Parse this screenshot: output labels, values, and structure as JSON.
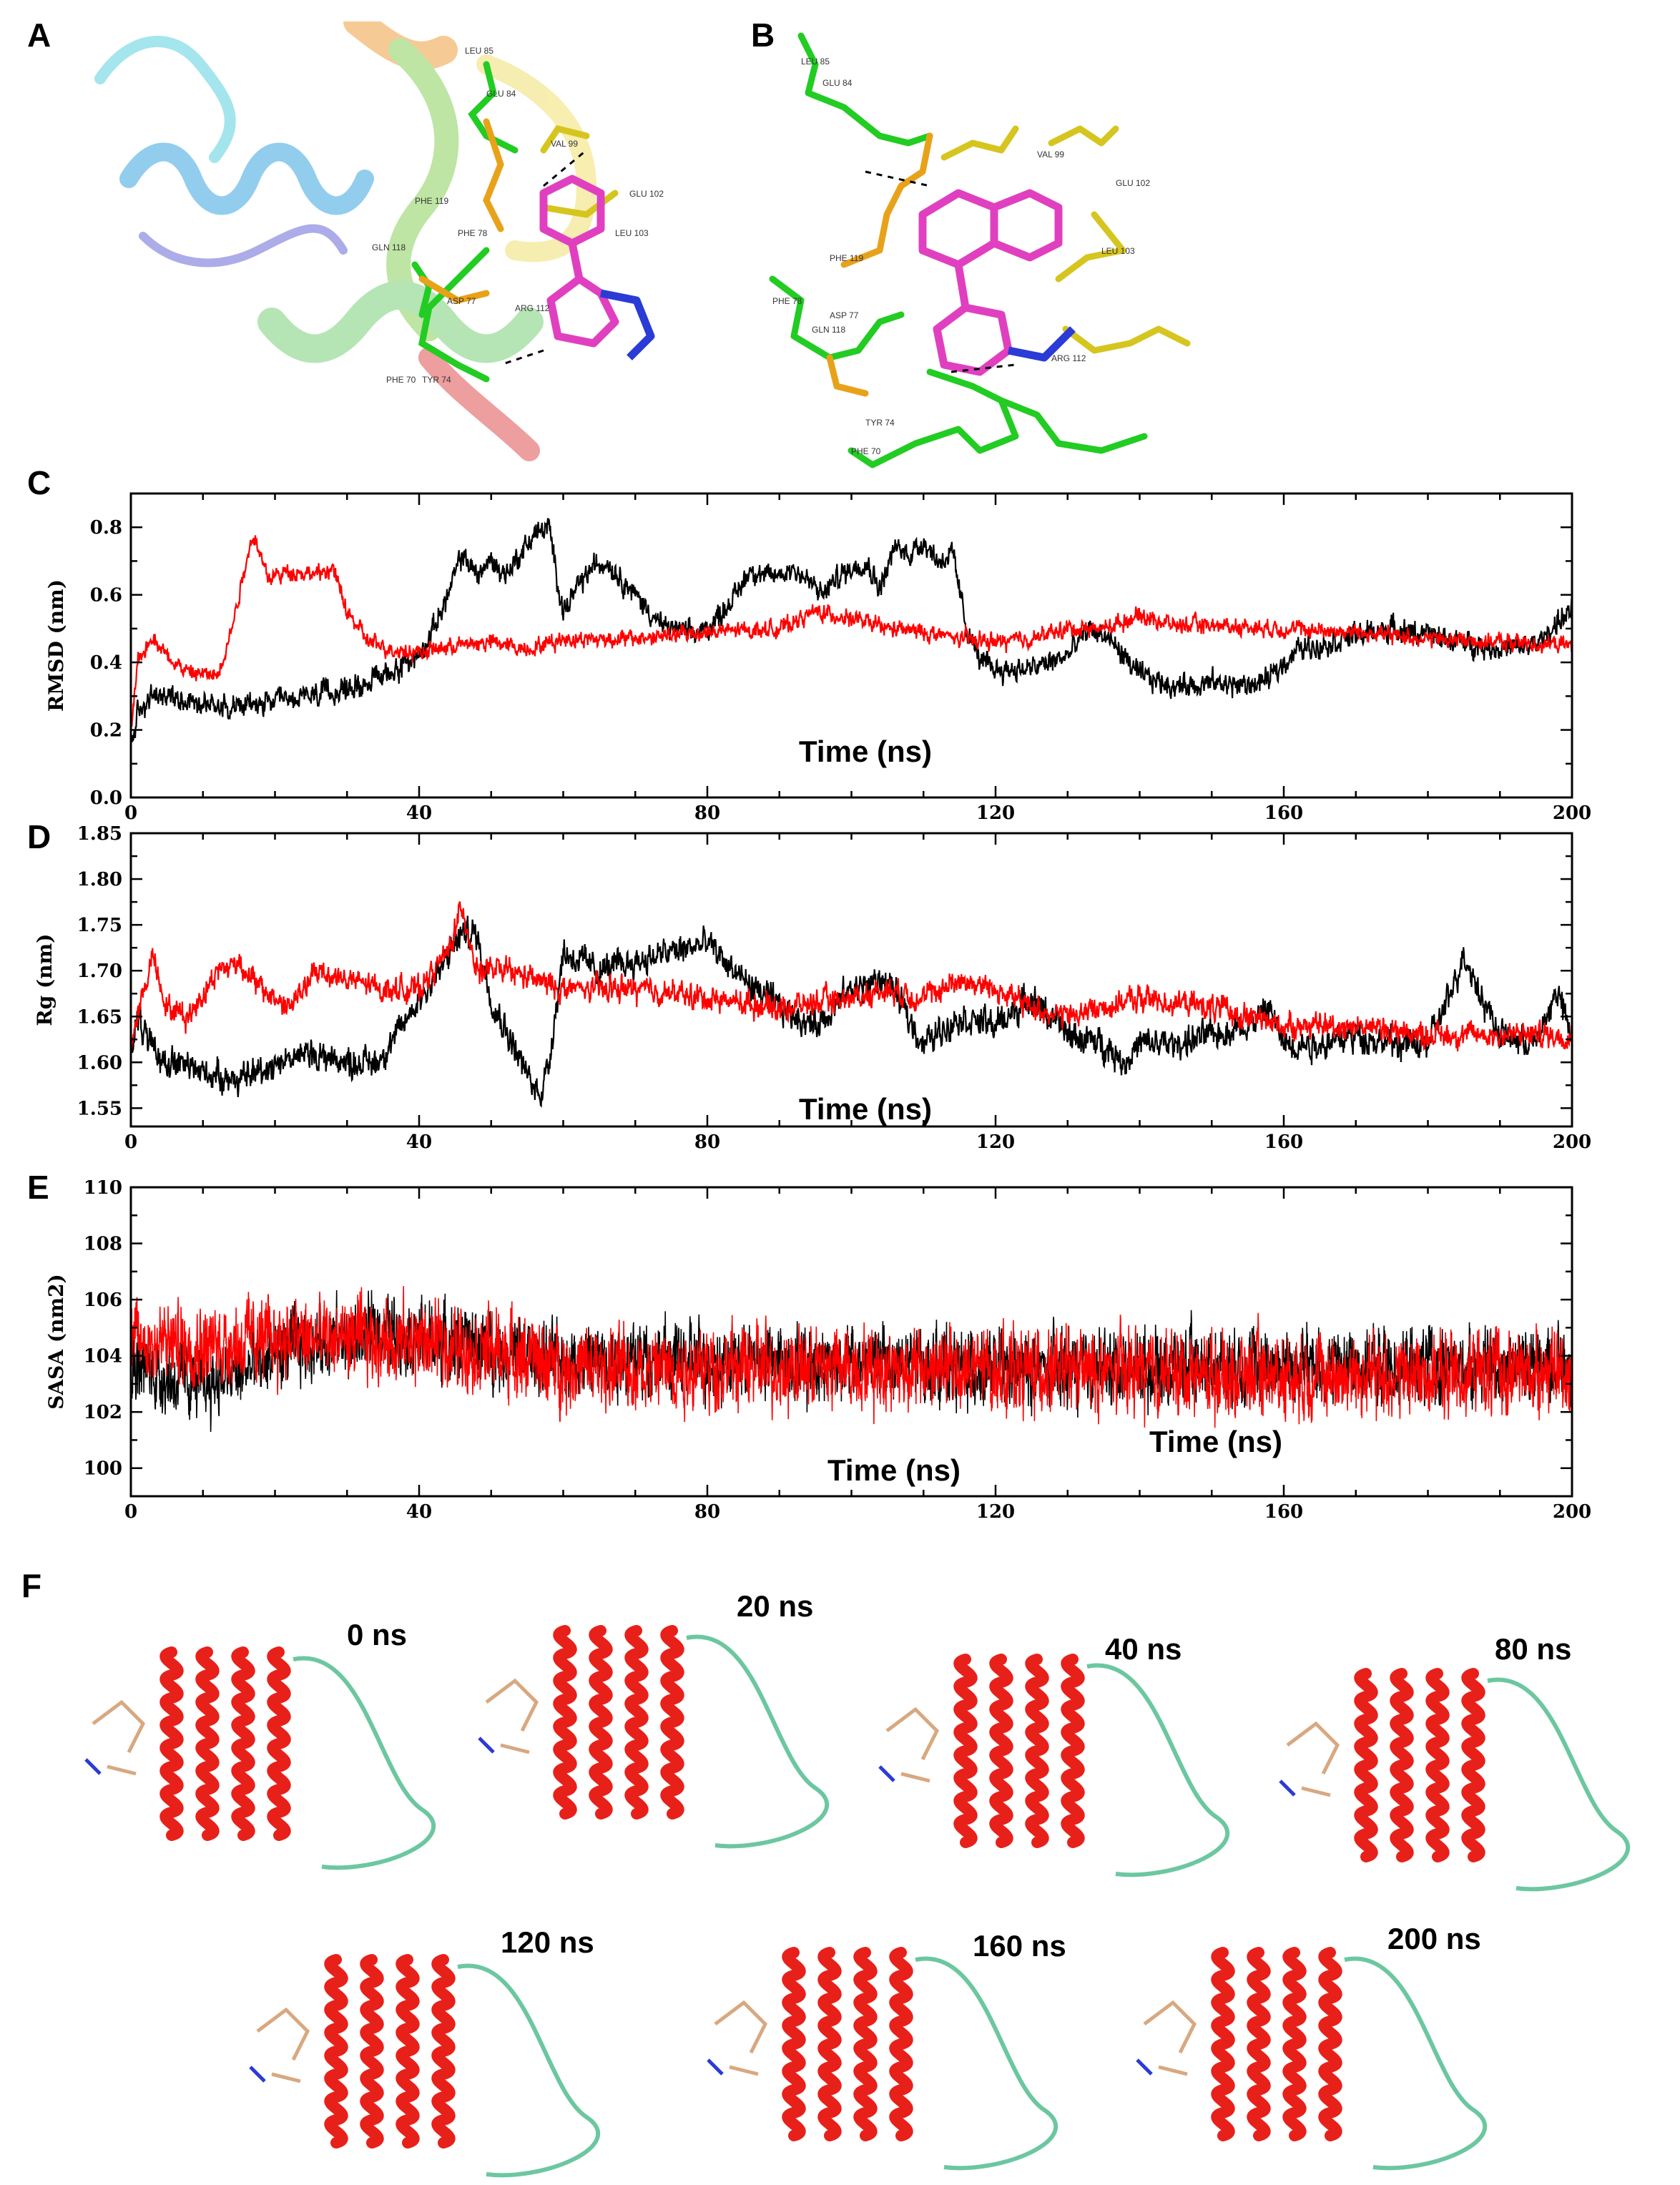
{
  "panels": {
    "A": "A",
    "B": "B",
    "C": "C",
    "D": "D",
    "E": "E",
    "F": "F"
  },
  "colors": {
    "series_black": "#000000",
    "series_red": "#ff0000",
    "helix": "#e8201a",
    "loop": "#6cc7a0",
    "carbon_green": "#22cc22",
    "carbon_orange": "#e8a21a",
    "carbon_yellow": "#d6c51f",
    "ligand": "#e040c0",
    "nitrogen": "#2a3bd6",
    "oxygen": "#d02020"
  },
  "panel_A": {
    "residue_labels": [
      "LEU 85",
      "GLU 84",
      "VAL 99",
      "GLU 102",
      "PHE 119",
      "PHE 78",
      "LEU 103",
      "GLN 118",
      "ASP 77",
      "ARG 112",
      "PHE 70",
      "TYR 74"
    ]
  },
  "panel_B": {
    "residue_labels": [
      "LEU 85",
      "GLU 84",
      "VAL 99",
      "GLU 102",
      "PHE 119",
      "LEU 103",
      "PHE 78",
      "ASP 77",
      "GLN 118",
      "ARG 112",
      "TYR 74",
      "PHE 70"
    ]
  },
  "chart_data": [
    {
      "type": "line",
      "panel": "C",
      "xlabel": "Time (ns)",
      "ylabel": "RMSD (nm)",
      "xlim": [
        0,
        200
      ],
      "ylim": [
        0,
        0.9
      ],
      "xticks": [
        0,
        40,
        80,
        120,
        160,
        200
      ],
      "yticks": [
        0.0,
        0.2,
        0.4,
        0.6,
        0.8
      ],
      "ytick_labels": [
        "0.0",
        "0.2",
        "0.4",
        "0.6",
        "0.8"
      ],
      "series": [
        {
          "color": "#000000",
          "noise": 0.025,
          "x": [
            0,
            1,
            3,
            6,
            10,
            15,
            20,
            25,
            30,
            35,
            40,
            42,
            44,
            46,
            48,
            50,
            52,
            54,
            56,
            58,
            60,
            62,
            64,
            66,
            68,
            70,
            72,
            74,
            76,
            78,
            80,
            82,
            84,
            86,
            88,
            90,
            92,
            94,
            96,
            98,
            100,
            102,
            104,
            106,
            108,
            110,
            112,
            114,
            116,
            118,
            120,
            125,
            130,
            133,
            135,
            137,
            140,
            145,
            150,
            155,
            158,
            160,
            162,
            165,
            170,
            175,
            180,
            185,
            190,
            195,
            198,
            200
          ],
          "y": [
            0.15,
            0.25,
            0.3,
            0.3,
            0.28,
            0.27,
            0.28,
            0.3,
            0.32,
            0.36,
            0.42,
            0.5,
            0.6,
            0.72,
            0.66,
            0.7,
            0.66,
            0.72,
            0.78,
            0.8,
            0.55,
            0.62,
            0.68,
            0.7,
            0.65,
            0.6,
            0.55,
            0.5,
            0.5,
            0.48,
            0.5,
            0.55,
            0.6,
            0.68,
            0.65,
            0.66,
            0.68,
            0.64,
            0.6,
            0.65,
            0.68,
            0.7,
            0.62,
            0.74,
            0.72,
            0.76,
            0.7,
            0.72,
            0.5,
            0.4,
            0.38,
            0.38,
            0.42,
            0.5,
            0.48,
            0.44,
            0.36,
            0.33,
            0.34,
            0.33,
            0.35,
            0.4,
            0.44,
            0.45,
            0.48,
            0.5,
            0.48,
            0.46,
            0.44,
            0.45,
            0.52,
            0.55
          ]
        },
        {
          "color": "#ff0000",
          "noise": 0.018,
          "x": [
            0,
            1,
            3,
            5,
            8,
            12,
            14,
            16,
            17,
            19,
            22,
            26,
            28,
            30,
            33,
            36,
            40,
            45,
            50,
            55,
            60,
            70,
            80,
            90,
            95,
            100,
            105,
            110,
            115,
            120,
            125,
            130,
            135,
            140,
            145,
            150,
            160,
            170,
            180,
            190,
            200
          ],
          "y": [
            0.2,
            0.4,
            0.48,
            0.42,
            0.37,
            0.36,
            0.5,
            0.7,
            0.78,
            0.65,
            0.67,
            0.66,
            0.68,
            0.55,
            0.46,
            0.44,
            0.43,
            0.45,
            0.46,
            0.44,
            0.47,
            0.47,
            0.49,
            0.5,
            0.55,
            0.53,
            0.5,
            0.49,
            0.47,
            0.46,
            0.47,
            0.5,
            0.5,
            0.54,
            0.51,
            0.51,
            0.5,
            0.49,
            0.47,
            0.46,
            0.45
          ]
        }
      ]
    },
    {
      "type": "line",
      "panel": "D",
      "xlabel": "Time (ns)",
      "ylabel": "Rg (nm)",
      "xlim": [
        0,
        200
      ],
      "ylim": [
        1.53,
        1.85
      ],
      "xticks": [
        0,
        40,
        80,
        120,
        160,
        200
      ],
      "yticks": [
        1.55,
        1.6,
        1.65,
        1.7,
        1.75,
        1.8,
        1.85
      ],
      "ytick_labels": [
        "1.55",
        "1.60",
        "1.65",
        "1.70",
        "1.75",
        "1.80",
        "1.85"
      ],
      "series": [
        {
          "color": "#000000",
          "noise": 0.012,
          "x": [
            0,
            1,
            3,
            6,
            10,
            15,
            20,
            25,
            30,
            34,
            37,
            40,
            43,
            45,
            46,
            48,
            50,
            53,
            56,
            57,
            58,
            60,
            65,
            70,
            75,
            80,
            85,
            90,
            95,
            100,
            105,
            110,
            115,
            120,
            125,
            130,
            135,
            138,
            140,
            145,
            150,
            155,
            158,
            160,
            165,
            170,
            175,
            180,
            183,
            185,
            187,
            190,
            195,
            198,
            200
          ],
          "y": [
            1.62,
            1.65,
            1.61,
            1.6,
            1.59,
            1.58,
            1.6,
            1.61,
            1.6,
            1.6,
            1.63,
            1.67,
            1.7,
            1.73,
            1.74,
            1.74,
            1.67,
            1.62,
            1.57,
            1.57,
            1.6,
            1.72,
            1.7,
            1.71,
            1.72,
            1.73,
            1.69,
            1.66,
            1.64,
            1.68,
            1.69,
            1.62,
            1.65,
            1.64,
            1.67,
            1.63,
            1.62,
            1.6,
            1.62,
            1.62,
            1.63,
            1.64,
            1.66,
            1.62,
            1.62,
            1.63,
            1.62,
            1.62,
            1.67,
            1.72,
            1.68,
            1.63,
            1.62,
            1.68,
            1.62
          ]
        },
        {
          "color": "#ff0000",
          "noise": 0.01,
          "x": [
            0,
            1,
            3,
            5,
            8,
            12,
            15,
            18,
            22,
            26,
            30,
            35,
            40,
            44,
            46,
            48,
            52,
            56,
            60,
            70,
            80,
            90,
            100,
            105,
            110,
            115,
            120,
            125,
            130,
            140,
            150,
            160,
            170,
            180,
            190,
            200
          ],
          "y": [
            1.62,
            1.65,
            1.72,
            1.66,
            1.65,
            1.7,
            1.71,
            1.68,
            1.66,
            1.7,
            1.69,
            1.68,
            1.68,
            1.72,
            1.77,
            1.7,
            1.7,
            1.69,
            1.68,
            1.68,
            1.67,
            1.66,
            1.67,
            1.68,
            1.67,
            1.69,
            1.68,
            1.66,
            1.65,
            1.67,
            1.66,
            1.64,
            1.64,
            1.63,
            1.63,
            1.63
          ]
        }
      ]
    },
    {
      "type": "line",
      "panel": "E",
      "xlabel": "Time (ns)",
      "annotation": "Time (ns)",
      "ylabel": "SASA (nm2)",
      "xlim": [
        0,
        200
      ],
      "ylim": [
        99,
        110
      ],
      "xticks": [
        0,
        40,
        80,
        120,
        160,
        200
      ],
      "yticks": [
        100,
        102,
        104,
        106,
        108,
        110
      ],
      "ytick_labels": [
        "100",
        "102",
        "104",
        "106",
        "108",
        "110"
      ],
      "series": [
        {
          "color": "#000000",
          "noise": 0.9,
          "x": [
            0,
            5,
            10,
            15,
            20,
            25,
            30,
            35,
            40,
            50,
            60,
            70,
            80,
            100,
            120,
            140,
            160,
            180,
            200
          ],
          "y": [
            103.8,
            103.2,
            103.0,
            103.4,
            104.0,
            104.5,
            104.6,
            105.0,
            104.6,
            104.3,
            103.8,
            104.0,
            103.8,
            103.8,
            103.5,
            103.6,
            103.7,
            103.6,
            103.8
          ]
        },
        {
          "color": "#ff0000",
          "noise": 1.0,
          "x": [
            0,
            10,
            20,
            30,
            40,
            50,
            60,
            70,
            80,
            100,
            120,
            140,
            160,
            180,
            200
          ],
          "y": [
            104.5,
            104.4,
            104.6,
            104.6,
            104.5,
            104.2,
            103.6,
            103.5,
            103.6,
            103.6,
            103.5,
            103.4,
            103.3,
            103.3,
            103.5
          ]
        }
      ]
    }
  ],
  "panel_F": {
    "snapshots": [
      {
        "label": "0 ns"
      },
      {
        "label": "20 ns"
      },
      {
        "label": "40 ns"
      },
      {
        "label": "80 ns"
      },
      {
        "label": "120 ns"
      },
      {
        "label": "160 ns"
      },
      {
        "label": "200 ns"
      }
    ]
  }
}
